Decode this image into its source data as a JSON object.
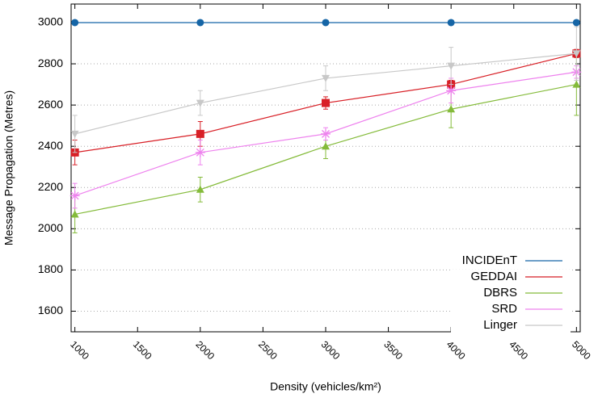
{
  "chart_data": {
    "type": "line",
    "x_label": "Density (vehicles/km²)",
    "y_label": "Message Propagation (Metres)",
    "x": [
      1000,
      2000,
      3000,
      4000,
      5000
    ],
    "xlim": [
      970,
      5030
    ],
    "xticks": [
      1000,
      1500,
      2000,
      2500,
      3000,
      3500,
      4000,
      4500,
      5000
    ],
    "ylim": [
      1500,
      3090
    ],
    "yticks": [
      1600,
      1800,
      2000,
      2200,
      2400,
      2600,
      2800,
      3000
    ],
    "grid": true,
    "legend": "lower right",
    "series": [
      {
        "name": "INCIDEnT",
        "color": "#1565a6",
        "marker": "circle",
        "values": [
          3000,
          3000,
          3000,
          3000,
          3000
        ],
        "errors": [
          0,
          0,
          0,
          0,
          0
        ]
      },
      {
        "name": "GEDDAI",
        "color": "#d81f26",
        "marker": "square",
        "values": [
          2370,
          2460,
          2610,
          2700,
          2850
        ],
        "errors": [
          60,
          60,
          30,
          20,
          20
        ]
      },
      {
        "name": "DBRS",
        "color": "#84bb3a",
        "marker": "triangle",
        "values": [
          2070,
          2190,
          2400,
          2580,
          2700
        ],
        "errors": [
          90,
          60,
          60,
          90,
          150
        ]
      },
      {
        "name": "SRD",
        "color": "#ee82ee",
        "marker": "asterisk",
        "values": [
          2160,
          2370,
          2460,
          2670,
          2760
        ],
        "errors": [
          60,
          60,
          30,
          60,
          30
        ]
      },
      {
        "name": "Linger",
        "color": "#c8c8c8",
        "marker": "triangle-down",
        "values": [
          2460,
          2610,
          2730,
          2790,
          2850
        ],
        "errors": [
          90,
          60,
          60,
          90,
          130
        ]
      }
    ]
  }
}
